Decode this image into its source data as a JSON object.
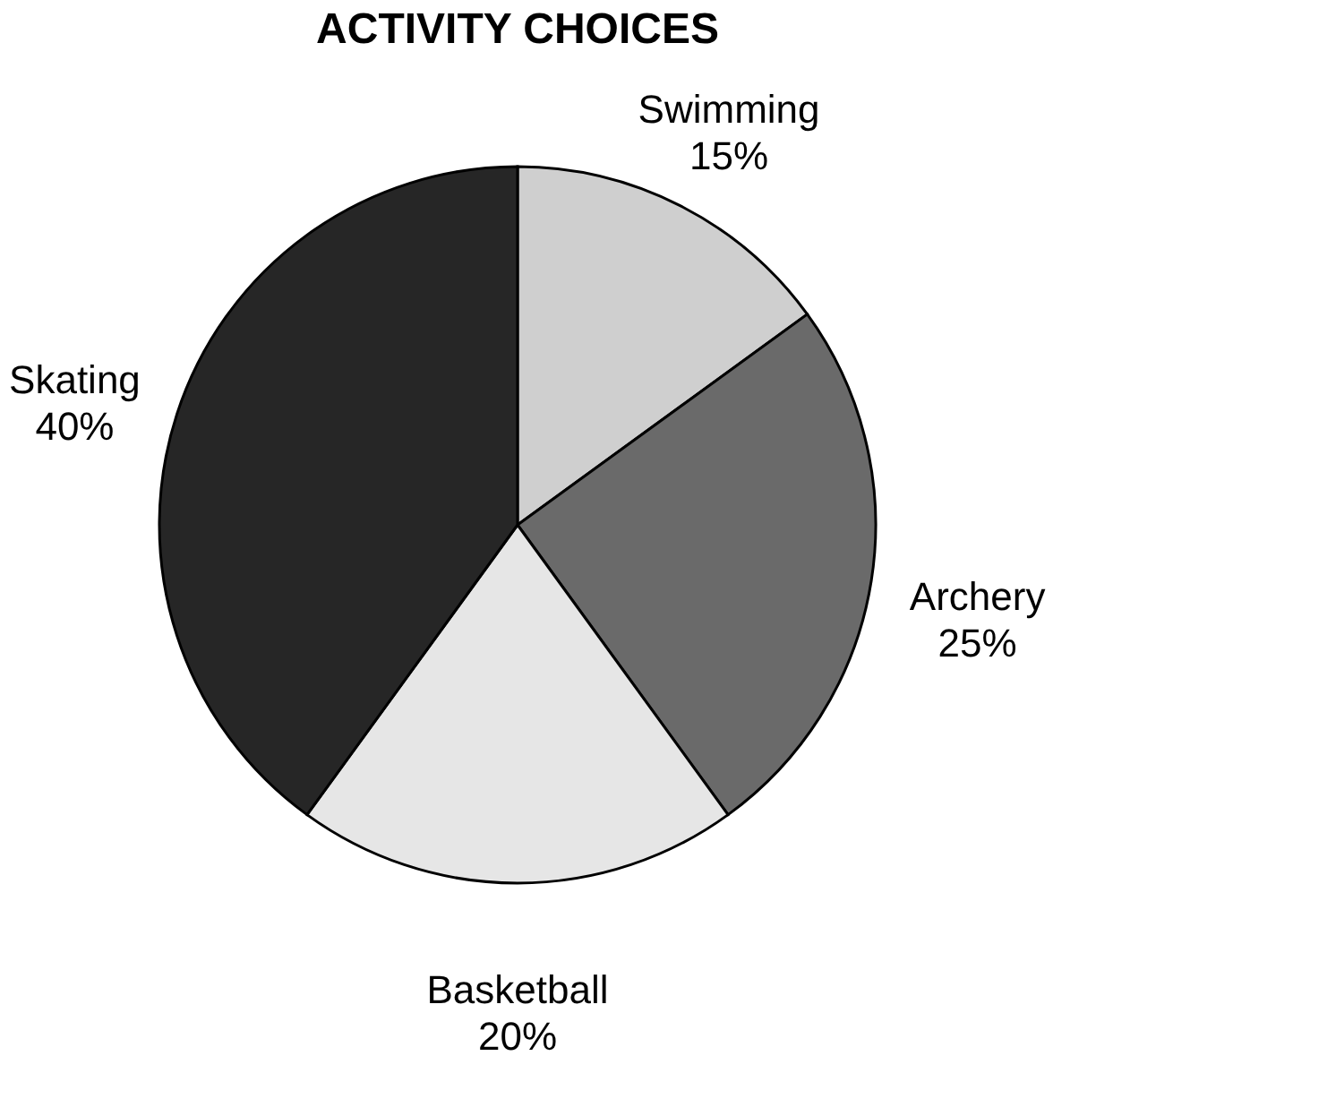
{
  "chart_data": {
    "type": "pie",
    "title": "ACTIVITY CHOICES",
    "categories": [
      "Swimming",
      "Archery",
      "Basketball",
      "Skating"
    ],
    "values": [
      15,
      25,
      20,
      40
    ],
    "value_labels": [
      "15%",
      "25%",
      "20%",
      "40%"
    ],
    "colors": [
      "#cfcfcf",
      "#6a6a6a",
      "#e6e6e6",
      "#262626"
    ],
    "legend": false
  }
}
